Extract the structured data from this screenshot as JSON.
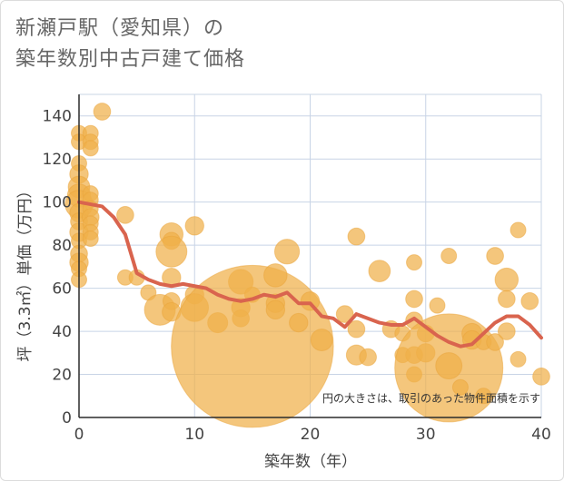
{
  "chart_data": {
    "type": "scatter",
    "title": [
      "新瀬戸駅（愛知県）の",
      "築年数別中古戸建て価格"
    ],
    "xlabel": "築年数（年）",
    "ylabel": "坪（3.3㎡）単価（万円）",
    "xlim": [
      0,
      40
    ],
    "ylim": [
      0,
      150
    ],
    "xticks": [
      0,
      10,
      20,
      30,
      40
    ],
    "yticks": [
      0,
      20,
      40,
      60,
      80,
      100,
      120,
      140
    ],
    "note": "円の大きさは、取引のあった物件面積を示す",
    "colors": {
      "bubble": "#f0b04a",
      "bubble_stroke": "#eaa43a",
      "line": "#d9644e",
      "grid": "#c8d4e6"
    },
    "trend_line": {
      "x": [
        0,
        1,
        2,
        3,
        4,
        5,
        6,
        7,
        8,
        9,
        10,
        11,
        12,
        13,
        14,
        15,
        16,
        17,
        18,
        19,
        20,
        21,
        22,
        23,
        24,
        25,
        26,
        27,
        28,
        29,
        30,
        31,
        32,
        33,
        34,
        35,
        36,
        37,
        38,
        39,
        40
      ],
      "y": [
        100,
        99,
        98,
        93,
        85,
        67,
        64,
        62,
        61,
        62,
        61,
        60,
        57,
        55,
        54,
        55,
        57,
        56,
        58,
        53,
        53,
        47,
        46,
        42,
        48,
        46,
        44,
        43,
        43,
        46,
        42,
        38,
        35,
        33,
        34,
        39,
        44,
        47,
        47,
        43,
        37
      ]
    },
    "bubbles": [
      {
        "x": 0,
        "y": 132,
        "s": 1
      },
      {
        "x": 0,
        "y": 128,
        "s": 1
      },
      {
        "x": 0,
        "y": 118,
        "s": 1
      },
      {
        "x": 0,
        "y": 113,
        "s": 1.2
      },
      {
        "x": 0,
        "y": 107,
        "s": 1.4
      },
      {
        "x": 0,
        "y": 103,
        "s": 1.5
      },
      {
        "x": 0,
        "y": 99,
        "s": 1.8
      },
      {
        "x": 0,
        "y": 95,
        "s": 1.2
      },
      {
        "x": 0,
        "y": 91,
        "s": 1.1
      },
      {
        "x": 0,
        "y": 86,
        "s": 1.2
      },
      {
        "x": 0,
        "y": 82,
        "s": 1
      },
      {
        "x": 0,
        "y": 76,
        "s": 1.1
      },
      {
        "x": 0,
        "y": 72,
        "s": 1.2
      },
      {
        "x": 0,
        "y": 69,
        "s": 1
      },
      {
        "x": 0,
        "y": 64,
        "s": 1
      },
      {
        "x": 1,
        "y": 132,
        "s": 1
      },
      {
        "x": 1,
        "y": 128,
        "s": 1
      },
      {
        "x": 1,
        "y": 125,
        "s": 1
      },
      {
        "x": 1,
        "y": 104,
        "s": 1
      },
      {
        "x": 1,
        "y": 101,
        "s": 1
      },
      {
        "x": 1,
        "y": 97,
        "s": 1
      },
      {
        "x": 1,
        "y": 93,
        "s": 1.1
      },
      {
        "x": 1,
        "y": 90,
        "s": 1
      },
      {
        "x": 1,
        "y": 86,
        "s": 1
      },
      {
        "x": 1,
        "y": 83,
        "s": 1
      },
      {
        "x": 2,
        "y": 142,
        "s": 1.1
      },
      {
        "x": 4,
        "y": 94,
        "s": 1.1
      },
      {
        "x": 4,
        "y": 65,
        "s": 1
      },
      {
        "x": 5,
        "y": 65,
        "s": 1
      },
      {
        "x": 6,
        "y": 58,
        "s": 1
      },
      {
        "x": 7,
        "y": 50,
        "s": 2
      },
      {
        "x": 8,
        "y": 85,
        "s": 1.5
      },
      {
        "x": 8,
        "y": 82,
        "s": 1.1
      },
      {
        "x": 8,
        "y": 77,
        "s": 2
      },
      {
        "x": 8,
        "y": 65,
        "s": 1.2
      },
      {
        "x": 8,
        "y": 54,
        "s": 1.1
      },
      {
        "x": 8,
        "y": 49,
        "s": 1.2
      },
      {
        "x": 10,
        "y": 89,
        "s": 1.2
      },
      {
        "x": 10,
        "y": 57,
        "s": 1.2
      },
      {
        "x": 10,
        "y": 51,
        "s": 1.8
      },
      {
        "x": 12,
        "y": 44,
        "s": 1.3
      },
      {
        "x": 14,
        "y": 63,
        "s": 1.6
      },
      {
        "x": 14,
        "y": 51,
        "s": 1.2
      },
      {
        "x": 14,
        "y": 46,
        "s": 1.1
      },
      {
        "x": 15,
        "y": 57,
        "s": 1
      },
      {
        "x": 15,
        "y": 33,
        "s": 10.5
      },
      {
        "x": 17,
        "y": 66,
        "s": 1.5
      },
      {
        "x": 17,
        "y": 53,
        "s": 1.2
      },
      {
        "x": 17,
        "y": 50,
        "s": 1.2
      },
      {
        "x": 18,
        "y": 77,
        "s": 1.6
      },
      {
        "x": 19,
        "y": 44,
        "s": 1.2
      },
      {
        "x": 20,
        "y": 54,
        "s": 1.2
      },
      {
        "x": 21,
        "y": 36,
        "s": 1.4
      },
      {
        "x": 23,
        "y": 48,
        "s": 1.1
      },
      {
        "x": 24,
        "y": 84,
        "s": 1.1
      },
      {
        "x": 24,
        "y": 41,
        "s": 1.1
      },
      {
        "x": 24,
        "y": 29,
        "s": 1.3
      },
      {
        "x": 25,
        "y": 28,
        "s": 1.1
      },
      {
        "x": 26,
        "y": 68,
        "s": 1.4
      },
      {
        "x": 27,
        "y": 41,
        "s": 1.1
      },
      {
        "x": 28,
        "y": 39,
        "s": 1
      },
      {
        "x": 28,
        "y": 29,
        "s": 1
      },
      {
        "x": 29,
        "y": 72,
        "s": 1
      },
      {
        "x": 29,
        "y": 55,
        "s": 1.1
      },
      {
        "x": 29,
        "y": 45,
        "s": 1.1
      },
      {
        "x": 29,
        "y": 29,
        "s": 1.1
      },
      {
        "x": 29,
        "y": 20,
        "s": 1
      },
      {
        "x": 30,
        "y": 39,
        "s": 1.1
      },
      {
        "x": 30,
        "y": 30,
        "s": 1.2
      },
      {
        "x": 31,
        "y": 52,
        "s": 1
      },
      {
        "x": 32,
        "y": 75,
        "s": 1
      },
      {
        "x": 32,
        "y": 23,
        "s": 7
      },
      {
        "x": 32,
        "y": 24,
        "s": 1.7
      },
      {
        "x": 33,
        "y": 14,
        "s": 1
      },
      {
        "x": 34,
        "y": 39,
        "s": 1.3
      },
      {
        "x": 34,
        "y": 36,
        "s": 1.2
      },
      {
        "x": 35,
        "y": 10,
        "s": 1
      },
      {
        "x": 35,
        "y": 35,
        "s": 1
      },
      {
        "x": 36,
        "y": 75,
        "s": 1.1
      },
      {
        "x": 36,
        "y": 35,
        "s": 1.1
      },
      {
        "x": 37,
        "y": 64,
        "s": 1.5
      },
      {
        "x": 37,
        "y": 55,
        "s": 1.1
      },
      {
        "x": 37,
        "y": 40,
        "s": 1.1
      },
      {
        "x": 38,
        "y": 87,
        "s": 1
      },
      {
        "x": 38,
        "y": 27,
        "s": 1
      },
      {
        "x": 39,
        "y": 54,
        "s": 1.1
      },
      {
        "x": 40,
        "y": 19,
        "s": 1.1
      }
    ]
  }
}
